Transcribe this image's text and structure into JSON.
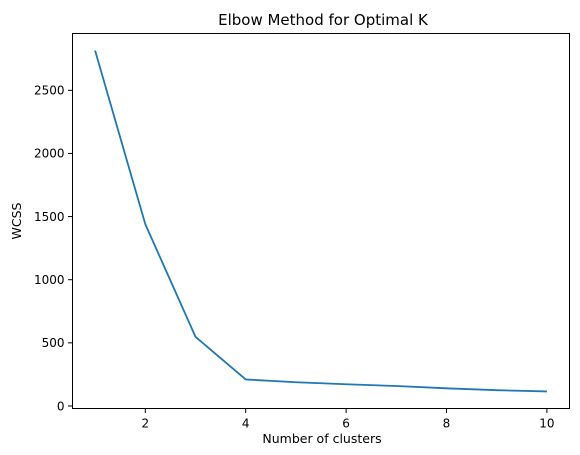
{
  "chart_data": {
    "type": "line",
    "title": "Elbow Method for Optimal K",
    "xlabel": "Number of clusters",
    "ylabel": "WCSS",
    "x": [
      1,
      2,
      3,
      4,
      5,
      6,
      7,
      8,
      9,
      10
    ],
    "series": [
      {
        "values": [
          2815,
          1440,
          548,
          210,
          188,
          172,
          158,
          140,
          125,
          115
        ],
        "color": "#1f77b4"
      }
    ],
    "xlim": [
      0.55,
      10.45
    ],
    "ylim": [
      -20,
      2950
    ],
    "xticks": [
      2,
      4,
      6,
      8,
      10
    ],
    "yticks": [
      0,
      500,
      1000,
      1500,
      2000,
      2500
    ],
    "grid": false,
    "legend": "none"
  }
}
